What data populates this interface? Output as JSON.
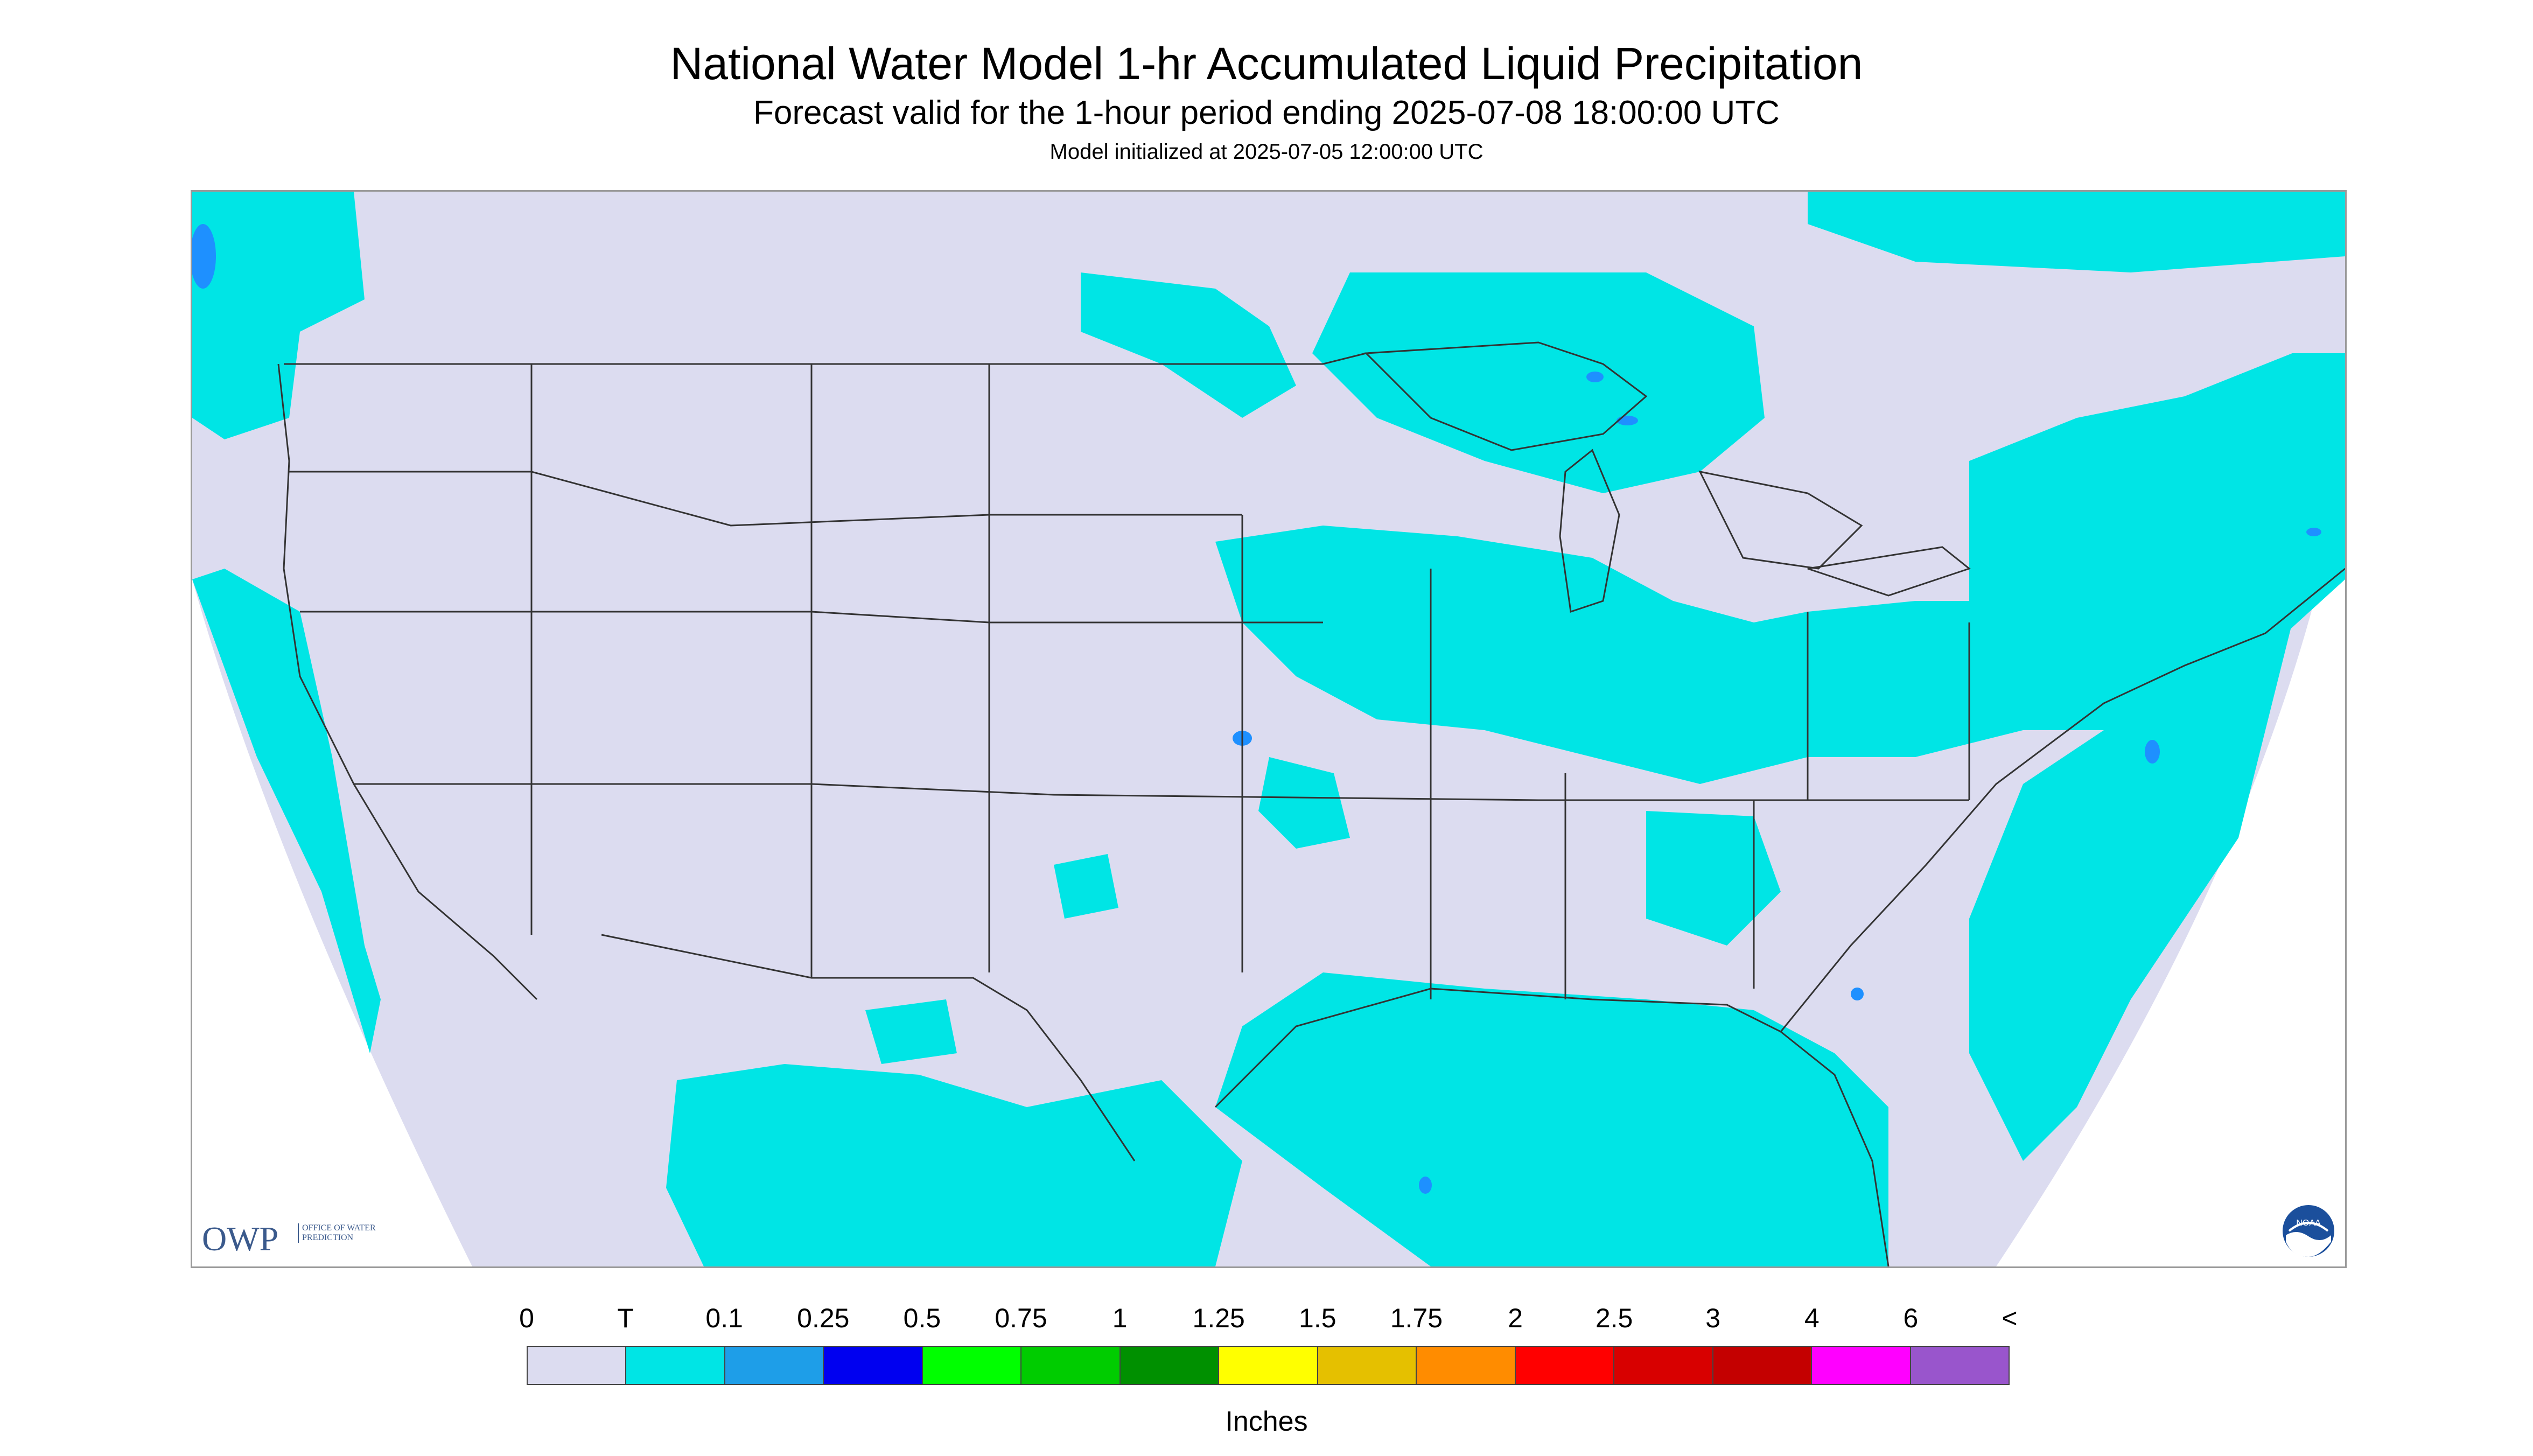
{
  "header": {
    "title": "National Water Model 1-hr Accumulated Liquid Precipitation",
    "subtitle": "Forecast valid for the 1-hour period ending 2025-07-08 18:00:00 UTC",
    "initialized": "Model initialized at 2025-07-05 12:00:00 UTC"
  },
  "map": {
    "background_color": "#dcdcf0",
    "outside_color": "#ffffff",
    "precip_color": "#00e5e5",
    "heavier_color": "#1e90ff",
    "border_color": "#333333"
  },
  "logos": {
    "owp_short": "OWP",
    "owp_long": "OFFICE OF WATER PREDICTION",
    "noaa": "NOAA"
  },
  "legend": {
    "unit": "Inches",
    "ticks": [
      "0",
      "T",
      "0.1",
      "0.25",
      "0.5",
      "0.75",
      "1",
      "1.25",
      "1.5",
      "1.75",
      "2",
      "2.5",
      "3",
      "4",
      "6",
      "<"
    ],
    "colors": [
      "#dcdcf0",
      "#00e5e5",
      "#1e9ee8",
      "#0000f0",
      "#00ff00",
      "#00cc00",
      "#009000",
      "#ffff00",
      "#e5c000",
      "#ff8c00",
      "#ff0000",
      "#d80000",
      "#c40000",
      "#ff00ff",
      "#9955cc"
    ]
  }
}
